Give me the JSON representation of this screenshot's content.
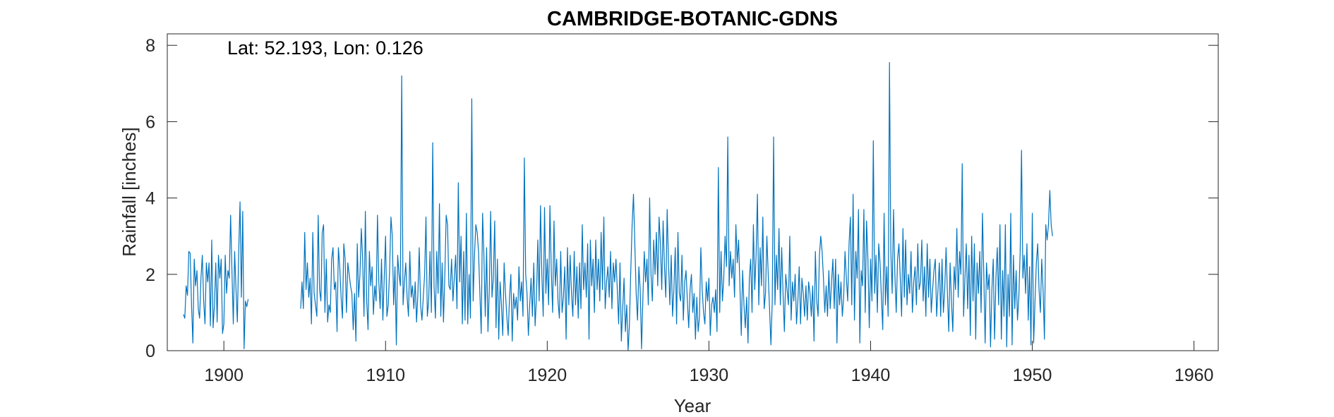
{
  "chart_data": {
    "type": "line",
    "title": "CAMBRIDGE-BOTANIC-GDNS",
    "annotation": "Lat: 52.193, Lon: 0.126",
    "xlabel": "Year",
    "ylabel": "Rainfall [inches]",
    "xlim": [
      1896.5,
      1961.5
    ],
    "ylim": [
      0,
      8.3
    ],
    "xticks": [
      1900,
      1910,
      1920,
      1930,
      1940,
      1950,
      1960
    ],
    "yticks": [
      0,
      2,
      4,
      6,
      8
    ],
    "grid": false,
    "series_color": "#0072BD",
    "sampling": "monthly",
    "series": [
      {
        "segments": [
          {
            "start": 1897.5,
            "values": [
              0.95,
              0.85,
              1.7,
              1.45,
              2.6,
              2.55,
              1.2,
              0.2,
              2.4,
              1.7,
              2.1,
              1.1,
              0.85,
              1.9,
              2.5,
              1.3,
              0.7,
              2.3,
              1.8,
              2.3,
              0.65,
              2.9,
              0.6,
              1.2,
              2.3,
              0.75,
              2.5,
              1.9,
              2.4,
              0.45,
              0.7,
              2.5,
              1.5,
              2.1,
              1.9,
              3.55,
              2.1,
              0.7,
              2.6,
              1.6,
              0.75,
              2.6,
              3.9,
              1.4,
              3.65,
              0.05,
              1.3,
              1.15,
              1.35
            ]
          },
          {
            "start": 1904.75,
            "values": [
              1.1,
              1.8,
              1.1,
              3.1,
              1.6,
              2.3,
              1.4,
              1.9,
              0.7,
              3.1,
              1.5,
              1.2,
              0.9,
              3.55,
              1.6,
              1.3,
              3.1,
              3.3,
              1.0,
              2.4,
              0.75,
              1.2,
              1.0,
              2.4,
              2.7,
              1.6,
              1.8,
              0.5,
              2.7,
              2.2,
              1.4,
              0.85,
              2.8,
              2.4,
              1.0,
              2.3,
              2.0,
              1.7,
              1.5,
              0.55,
              1.5,
              0.25,
              2.8,
              1.4,
              2.0,
              3.2,
              2.4,
              0.9,
              3.65,
              1.3,
              0.55,
              2.6,
              1.7,
              2.2,
              0.95,
              1.7,
              1.3,
              3.55,
              1.8,
              1.1,
              2.4,
              0.8,
              1.9,
              3.0,
              0.9,
              1.2,
              2.1,
              3.5,
              3.0,
              1.2,
              2.2,
              0.15,
              2.5,
              2.0,
              1.7,
              7.2,
              1.2,
              1.8,
              2.3,
              1.4,
              0.9,
              2.6,
              1.4,
              1.7,
              1.1,
              1.8,
              0.75,
              1.5,
              2.7,
              1.2,
              0.8,
              1.4,
              2.0,
              3.5,
              0.9,
              1.3,
              2.6,
              1.0,
              5.45,
              1.7,
              0.85,
              2.6,
              1.5,
              3.85,
              0.9,
              2.3,
              0.75,
              2.0,
              3.55,
              3.3,
              1.7,
              1.6,
              2.4,
              1.3,
              1.9,
              2.5,
              1.1,
              4.4,
              1.8,
              3.0,
              0.7,
              2.6,
              0.8,
              3.6,
              0.7,
              2.0,
              0.85,
              6.6,
              1.3,
              2.5,
              3.3,
              3.1,
              2.6,
              1.5,
              0.45,
              3.6,
              2.5,
              0.9,
              2.7,
              0.5,
              1.6,
              3.65,
              1.4,
              1.9,
              3.4,
              0.6,
              2.4,
              0.3,
              1.8,
              1.2,
              0.4,
              2.3,
              1.5,
              0.9,
              0.4,
              1.4,
              2.0,
              0.25,
              1.5,
              1.1,
              1.4,
              0.8,
              2.2,
              1.3,
              1.8,
              0.9,
              5.05,
              2.0,
              1.5,
              0.4,
              1.2,
              1.9,
              0.9,
              2.3,
              0.65,
              1.4,
              2.9,
              1.3,
              3.8,
              2.0,
              0.9,
              3.75,
              1.5,
              2.4,
              1.2,
              3.8,
              2.1,
              1.0,
              3.4,
              1.7,
              2.4,
              1.3,
              0.85,
              2.6,
              1.0,
              1.4,
              2.2,
              0.3,
              2.7,
              1.2,
              2.5,
              1.5,
              0.9,
              2.6,
              1.2,
              2.2,
              0.85,
              2.3,
              1.1,
              3.3,
              1.6,
              2.3,
              1.4,
              2.8,
              0.3,
              2.9,
              1.7,
              2.4,
              1.0,
              2.9,
              1.6,
              2.4,
              1.3,
              3.1,
              1.6,
              3.5,
              1.1,
              1.8,
              2.2,
              1.4,
              2.6,
              1.1,
              2.3,
              1.8,
              2.4,
              1.6,
              0.7,
              2.3,
              0.25,
              1.1,
              1.9,
              0.5,
              1.2,
              0.0,
              0.7,
              2.1,
              3.3,
              4.1,
              2.8,
              1.5,
              0.8,
              2.2,
              1.6,
              0.05,
              1.4,
              2.6,
              1.8,
              2.4,
              1.2,
              4.0,
              2.0,
              1.3,
              2.9,
              2.0,
              3.1,
              1.7,
              3.5,
              2.8,
              1.6,
              3.4,
              2.2,
              1.4,
              3.7,
              2.3,
              1.2,
              2.5,
              0.9,
              1.6,
              2.7,
              0.7,
              3.1,
              1.5,
              1.3,
              2.5,
              0.8,
              1.8,
              2.1,
              1.3,
              0.6,
              1.6,
              2.0,
              1.0,
              1.5,
              0.3,
              1.4,
              0.5,
              0.9,
              2.7,
              1.6,
              1.0,
              0.7,
              1.8,
              1.3,
              1.9,
              0.4,
              1.2,
              1.4,
              1.0,
              1.6,
              0.5,
              4.8,
              1.0,
              2.6,
              1.3,
              1.9,
              3.0,
              2.2,
              5.6,
              1.7,
              2.6,
              1.9,
              2.4,
              1.4,
              3.3,
              2.3,
              2.9,
              1.7,
              0.4,
              2.1,
              1.2,
              0.6,
              1.4,
              0.2,
              1.9,
              2.4,
              1.0,
              3.3,
              1.6,
              2.5,
              4.1,
              1.2,
              2.7,
              1.7,
              3.5,
              1.1,
              1.5,
              3.0,
              2.0,
              1.1,
              0.15,
              1.3,
              5.6,
              1.2,
              2.5,
              1.6,
              3.2,
              1.2,
              2.7,
              1.5,
              0.5,
              2.0,
              1.6,
              1.2,
              3.0,
              0.8,
              1.8,
              1.3,
              2.0,
              0.7,
              1.3,
              2.2,
              0.7,
              1.9,
              1.5,
              0.9,
              1.7,
              0.8,
              1.8,
              1.5,
              0.9,
              1.7,
              0.25,
              2.6,
              1.3,
              0.9,
              2.5,
              3.0,
              2.6,
              1.9,
              1.0,
              1.7,
              0.9,
              2.1,
              1.1,
              1.8,
              2.4,
              1.1,
              2.4,
              0.2,
              2.0,
              1.2,
              1.8,
              0.9,
              1.4,
              2.6,
              1.9,
              1.3,
              2.8,
              3.5,
              1.2,
              4.1,
              0.8,
              2.6,
              1.9,
              3.7,
              0.2,
              2.1,
              1.7,
              3.7,
              1.0,
              3.4,
              2.4,
              0.6,
              2.4,
              1.3,
              5.5,
              1.5,
              2.5,
              1.0,
              2.8,
              2.3,
              1.4,
              0.55,
              3.6,
              1.2,
              2.2,
              0.9,
              7.55,
              2.6,
              1.5,
              3.7,
              2.0,
              1.0,
              2.4,
              2.8,
              1.9,
              0.9,
              3.2,
              1.4,
              2.9,
              1.2,
              2.0,
              1.5,
              2.6,
              1.0,
              1.8,
              2.2,
              1.2,
              2.8,
              1.6,
              1.8,
              2.9,
              1.3,
              2.2,
              0.9,
              2.8,
              1.4,
              2.4,
              1.0,
              1.6,
              2.1,
              2.4,
              0.9,
              1.6,
              2.3,
              0.9,
              2.4,
              1.0,
              1.6,
              2.7,
              1.5,
              0.5,
              2.3,
              1.3,
              0.5,
              2.2,
              1.6,
              3.2,
              1.4,
              2.6,
              2.0,
              4.9,
              0.9,
              1.9,
              2.8,
              1.1,
              2.5,
              0.4,
              3.0,
              1.3,
              2.8,
              0.3,
              2.3,
              1.5,
              2.6,
              1.0,
              3.6,
              2.0,
              0.2,
              2.3,
              1.6,
              2.0,
              0.1,
              1.6,
              2.4,
              0.3,
              1.9,
              2.7,
              1.2,
              3.3,
              0.3,
              2.1,
              0.9,
              3.3,
              0.1,
              2.0,
              0.9,
              3.6,
              0.15,
              2.5,
              1.1,
              2.1,
              0.8,
              1.4,
              2.6,
              5.25,
              1.9,
              2.5,
              1.5,
              2.8,
              0.8,
              2.2,
              0.15,
              3.6,
              0.2,
              1.3,
              2.3,
              2.8,
              1.6,
              1.0,
              2.4,
              1.6,
              0.3,
              3.3,
              2.9,
              3.3,
              4.2,
              3.3,
              3.0
            ]
          }
        ]
      }
    ]
  }
}
